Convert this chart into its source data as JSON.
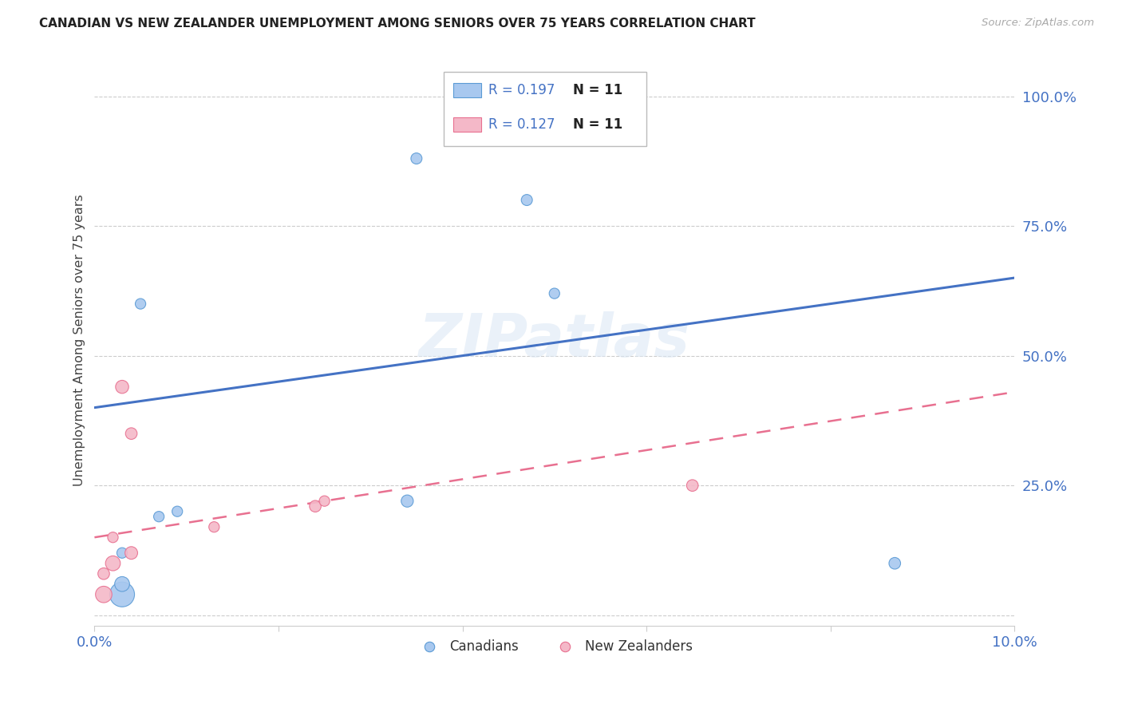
{
  "title": "CANADIAN VS NEW ZEALANDER UNEMPLOYMENT AMONG SENIORS OVER 75 YEARS CORRELATION CHART",
  "source": "Source: ZipAtlas.com",
  "ylabel": "Unemployment Among Seniors over 75 years",
  "xlim": [
    0.0,
    0.1
  ],
  "ylim": [
    -0.02,
    1.08
  ],
  "background_color": "#ffffff",
  "canadians_x": [
    0.003,
    0.003,
    0.007,
    0.009,
    0.034,
    0.035,
    0.047,
    0.05,
    0.087,
    0.003,
    0.005
  ],
  "canadians_y": [
    0.04,
    0.06,
    0.19,
    0.2,
    0.22,
    0.88,
    0.8,
    0.62,
    0.1,
    0.12,
    0.6
  ],
  "canadians_size": [
    500,
    180,
    90,
    90,
    120,
    100,
    100,
    90,
    110,
    90,
    90
  ],
  "nz_x": [
    0.001,
    0.001,
    0.002,
    0.003,
    0.004,
    0.004,
    0.013,
    0.024,
    0.025,
    0.065,
    0.002
  ],
  "nz_y": [
    0.04,
    0.08,
    0.1,
    0.44,
    0.12,
    0.35,
    0.17,
    0.21,
    0.22,
    0.25,
    0.15
  ],
  "nz_size": [
    220,
    110,
    180,
    140,
    130,
    110,
    90,
    110,
    90,
    110,
    90
  ],
  "canadian_color": "#a8c8ef",
  "canadian_edge_color": "#5b9bd5",
  "nz_color": "#f4b8c8",
  "nz_edge_color": "#e87090",
  "trend_canadian_color": "#4472c4",
  "trend_nz_color": "#e87090",
  "trend_canadian_x0": 0.0,
  "trend_canadian_y0": 0.4,
  "trend_canadian_x1": 0.1,
  "trend_canadian_y1": 0.65,
  "trend_nz_x0": 0.0,
  "trend_nz_y0": 0.15,
  "trend_nz_x1": 0.1,
  "trend_nz_y1": 0.43,
  "r_canadian": 0.197,
  "r_nz": 0.127,
  "n_canadian": 11,
  "n_nz": 11,
  "watermark": "ZIPatlas",
  "x_ticks": [
    0.0,
    0.02,
    0.04,
    0.06,
    0.08,
    0.1
  ],
  "x_tick_labels": [
    "0.0%",
    "",
    "",
    "",
    "",
    "10.0%"
  ],
  "y_ticks": [
    0.0,
    0.25,
    0.5,
    0.75,
    1.0
  ],
  "y_tick_labels_right": [
    "",
    "25.0%",
    "50.0%",
    "75.0%",
    "100.0%"
  ],
  "legend_bottom_labels": [
    "Canadians",
    "New Zealanders"
  ]
}
